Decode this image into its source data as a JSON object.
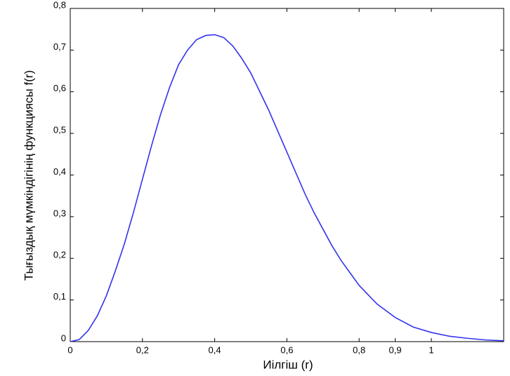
{
  "chart_data": {
    "type": "line",
    "xlabel": "Иілгіш (r)",
    "ylabel": "Тығыздық мүмкіндігінің функциясы f(r)",
    "x": [
      0,
      0.025,
      0.05,
      0.075,
      0.1,
      0.125,
      0.15,
      0.175,
      0.2,
      0.225,
      0.25,
      0.275,
      0.3,
      0.325,
      0.35,
      0.375,
      0.4,
      0.425,
      0.45,
      0.475,
      0.5,
      0.525,
      0.55,
      0.575,
      0.6,
      0.625,
      0.65,
      0.675,
      0.7,
      0.725,
      0.75,
      0.775,
      0.8,
      0.85,
      0.9,
      0.95,
      1.0,
      1.05,
      1.1,
      1.15,
      1.2
    ],
    "series": [
      {
        "color": "#3333ee",
        "values": [
          0,
          0.005,
          0.027,
          0.062,
          0.11,
          0.17,
          0.235,
          0.31,
          0.39,
          0.47,
          0.545,
          0.61,
          0.665,
          0.7,
          0.725,
          0.735,
          0.737,
          0.73,
          0.71,
          0.68,
          0.645,
          0.6,
          0.555,
          0.505,
          0.455,
          0.405,
          0.355,
          0.31,
          0.27,
          0.23,
          0.195,
          0.165,
          0.135,
          0.09,
          0.058,
          0.035,
          0.022,
          0.013,
          0.008,
          0.004,
          0.002
        ]
      }
    ],
    "xlim": [
      0,
      1.2
    ],
    "xticks": [
      0,
      {
        "value": 0.2,
        "label": "0,2"
      },
      {
        "value": 0.4,
        "label": "0,4"
      },
      {
        "value": 0.6,
        "label": "0,6"
      },
      {
        "value": 0.8,
        "label": "0,8"
      },
      {
        "value": 0.9,
        "label": "0,9"
      },
      1
    ],
    "ylim": [
      0,
      0.8
    ],
    "yticks": [
      0,
      {
        "value": 0.1,
        "label": "0,1"
      },
      {
        "value": 0.2,
        "label": "0,2"
      },
      {
        "value": 0.3,
        "label": "0,3"
      },
      {
        "value": 0.4,
        "label": "0,4"
      },
      {
        "value": 0.5,
        "label": "0,5"
      },
      {
        "value": 0.6,
        "label": "0,6"
      },
      {
        "value": 0.7,
        "label": "0,7"
      },
      {
        "value": 0.8,
        "label": "0,8"
      }
    ]
  }
}
